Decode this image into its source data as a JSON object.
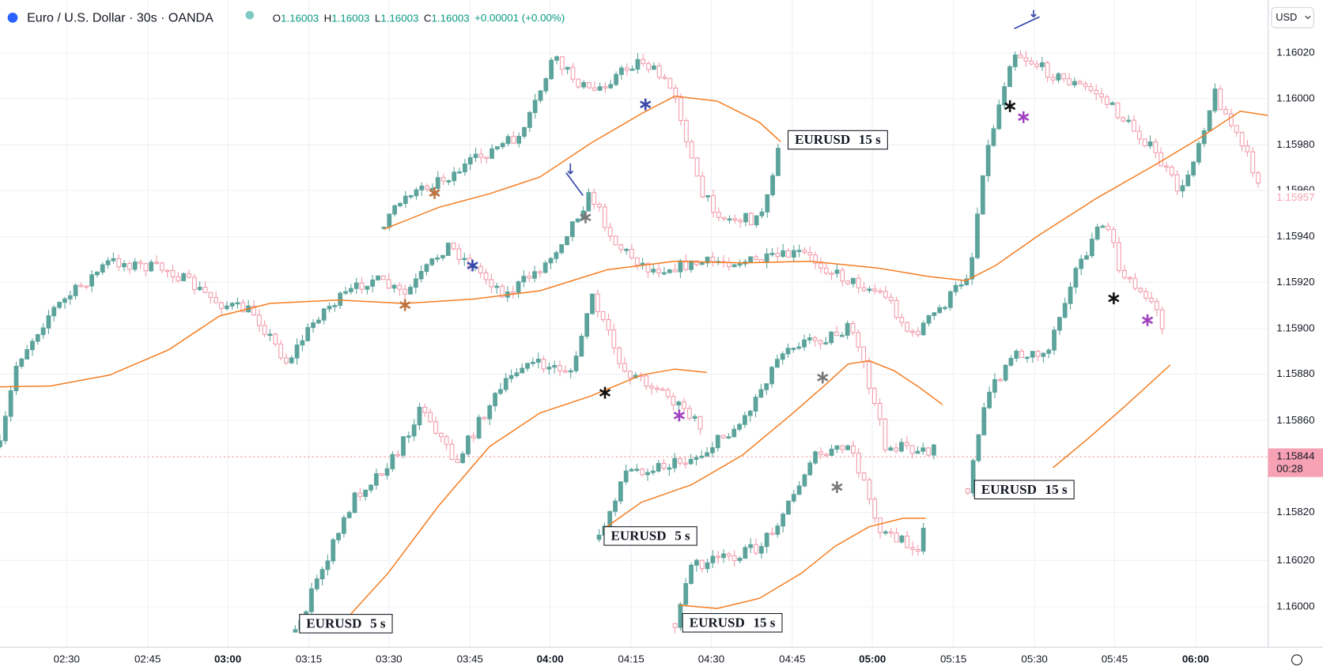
{
  "header": {
    "symbol": "Euro / U.S. Dollar · 30s · OANDA",
    "ohlc": [
      {
        "key": "O",
        "value": "1.16003"
      },
      {
        "key": "H",
        "value": "1.16003"
      },
      {
        "key": "L",
        "value": "1.16003"
      },
      {
        "key": "C",
        "value": "1.16003"
      }
    ],
    "change": "+0.00001 (+0.00%)"
  },
  "currency": "USD",
  "price_axis": [
    "1.16020",
    "1.16000",
    "1.15980",
    "1.15960",
    "1.15940",
    "1.15920",
    "1.15900",
    "1.15880",
    "1.15860",
    "1.15820",
    "1.16020",
    "1.16000"
  ],
  "price_tags": {
    "marker": "1.15957",
    "last": "1.15844",
    "countdown": "00:28"
  },
  "time_axis": [
    "02:30",
    "02:45",
    "03:00",
    "03:15",
    "03:30",
    "03:45",
    "04:00",
    "04:15",
    "04:30",
    "04:45",
    "05:00",
    "05:15",
    "05:30",
    "05:45",
    "06:00"
  ],
  "labels": [
    {
      "symbol": "EURUSD",
      "interval": "5 s"
    },
    {
      "symbol": "EURUSD",
      "interval": "15 s"
    },
    {
      "symbol": "EURUSD",
      "interval": "5 s"
    },
    {
      "symbol": "EURUSD",
      "interval": "15 s"
    },
    {
      "symbol": "EURUSD",
      "interval": "15 s"
    }
  ]
}
